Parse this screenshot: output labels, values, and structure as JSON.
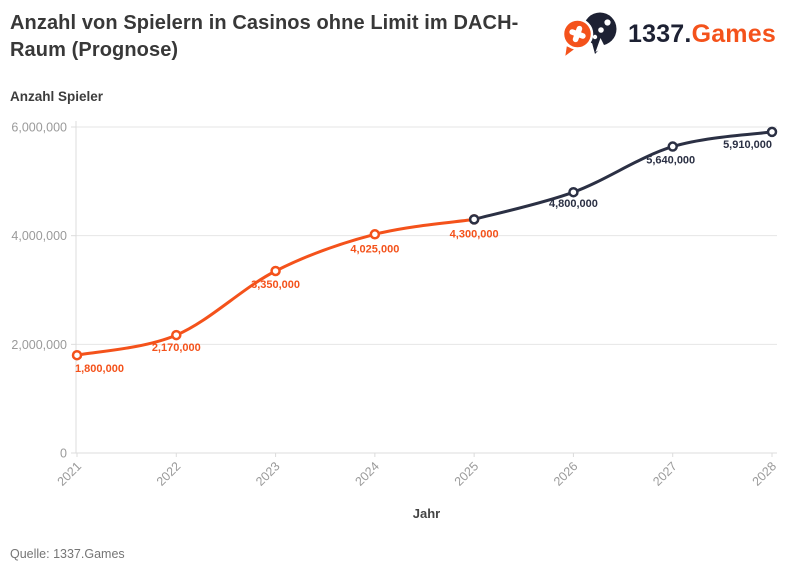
{
  "header": {
    "title": "Anzahl von Spielern in Casinos ohne Limit im DACH-Raum (Prognose)"
  },
  "logo": {
    "text_dark": "1337.",
    "text_orange": "Games"
  },
  "footer": {
    "source": "Quelle: 1337.Games"
  },
  "colors": {
    "actual": "#f4521b",
    "forecast": "#2b3044",
    "grid": "#e6e6e6",
    "axis": "#dcdcdc",
    "tick_label": "#9a9a9a",
    "logo_dark": "#1d2133",
    "logo_orange": "#f4521b"
  },
  "chart_data": {
    "type": "line",
    "title": "Anzahl von Spielern in Casinos ohne Limit im DACH-Raum (Prognose)",
    "xlabel": "Jahr",
    "ylabel": "Anzahl Spieler",
    "categories": [
      "2021",
      "2022",
      "2023",
      "2024",
      "2025",
      "2026",
      "2027",
      "2028"
    ],
    "ylim": [
      0,
      6000000
    ],
    "yticks": [
      0,
      2000000,
      4000000,
      6000000
    ],
    "ytick_labels": [
      "0",
      "2,000,000",
      "4,000,000",
      "6,000,000"
    ],
    "grid": "horizontal",
    "legend": "none",
    "marker": "open-circle",
    "series": [
      {
        "name": "actual",
        "color_key": "actual",
        "x": [
          "2021",
          "2022",
          "2023",
          "2024",
          "2025"
        ],
        "values": [
          1800000,
          2170000,
          3350000,
          4025000,
          4300000
        ],
        "value_labels": [
          "1,800,000",
          "2,170,000",
          "3,350,000",
          "4,025,000",
          "4,300,000"
        ]
      },
      {
        "name": "forecast",
        "color_key": "forecast",
        "x": [
          "2025",
          "2026",
          "2027",
          "2028"
        ],
        "values": [
          4300000,
          4800000,
          5640000,
          5910000
        ],
        "value_labels": [
          "4,300,000",
          "4,800,000",
          "5,640,000",
          "5,910,000"
        ]
      }
    ]
  }
}
